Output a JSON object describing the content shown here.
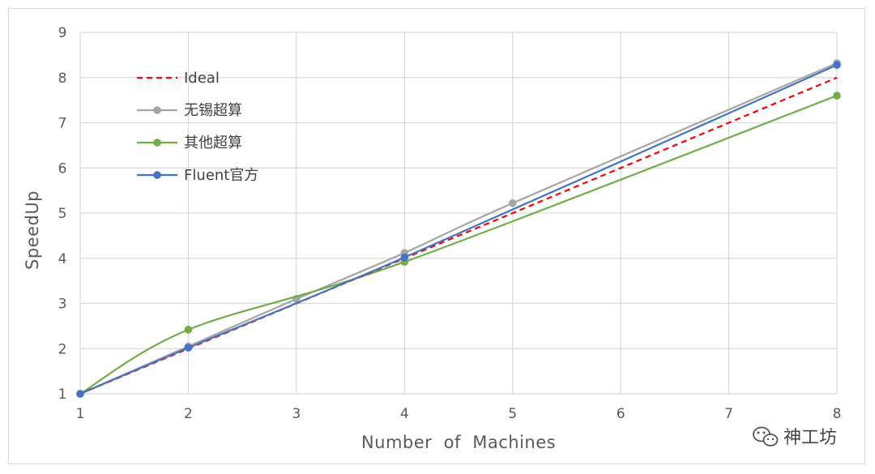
{
  "chart_data": {
    "type": "line",
    "xlabel": "Number  of  Machines",
    "ylabel": "SpeedUp",
    "xlim": [
      1,
      8
    ],
    "ylim": [
      1,
      9
    ],
    "x_ticks": [
      "1",
      "2",
      "3",
      "4",
      "5",
      "6",
      "7",
      "8"
    ],
    "y_ticks": [
      "1",
      "2",
      "3",
      "4",
      "5",
      "6",
      "7",
      "8",
      "9"
    ],
    "grid": "vertical and horizontal",
    "legend_position": "top-left",
    "series": [
      {
        "name": "Ideal",
        "color": "#ff0000",
        "style": "dashed",
        "markers": false,
        "x": [
          1,
          2,
          3,
          4,
          5,
          6,
          7,
          8
        ],
        "y": [
          1,
          2,
          3,
          4,
          5,
          6,
          7,
          8
        ]
      },
      {
        "name": "无锡超算",
        "color": "#a5a5a5",
        "style": "solid",
        "markers": true,
        "x": [
          1,
          2,
          3,
          4,
          5,
          8
        ],
        "y": [
          1,
          2.05,
          3.1,
          4.12,
          5.22,
          8.32
        ]
      },
      {
        "name": "其他超算",
        "color": "#70ad47",
        "style": "solid",
        "markers": true,
        "x": [
          1,
          2,
          4,
          8
        ],
        "y": [
          1,
          2.42,
          3.92,
          7.6
        ]
      },
      {
        "name": "Fluent官方",
        "color": "#4472c4",
        "style": "solid",
        "markers": true,
        "x": [
          1,
          2,
          4,
          8
        ],
        "y": [
          1,
          2.02,
          4.02,
          8.28
        ]
      }
    ]
  },
  "watermark": {
    "text": "神工坊",
    "icon": "wechat-icon"
  }
}
